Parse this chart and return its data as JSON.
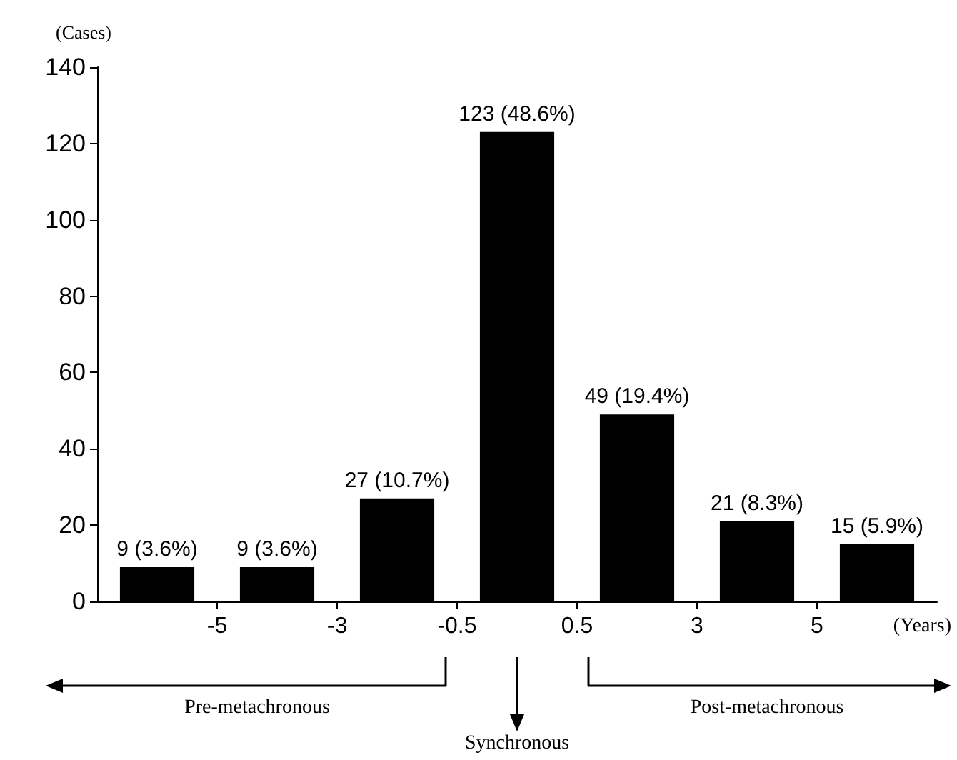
{
  "chart_data": {
    "type": "bar",
    "ylabel": "(Cases)",
    "categories": [
      null,
      null,
      null,
      null,
      null,
      null,
      null
    ],
    "values": [
      9,
      9,
      27,
      123,
      49,
      21,
      15
    ],
    "color": "#000000",
    "value_labels": [
      "9 (3.6%)",
      "9 (3.6%)",
      "27 (10.7%)",
      "123 (48.6%)",
      "49 (19.4%)",
      "21 (8.3%)",
      "15 (5.9%)"
    ],
    "ylim": [
      0,
      140
    ],
    "yticks": [
      0,
      20,
      40,
      60,
      80,
      100,
      120,
      140
    ],
    "grid": false,
    "annotations": [
      "-5",
      "-3",
      "-0.5",
      "0.5",
      "3",
      "5",
      "(Years)",
      "Pre-metachronous",
      "Synchronous",
      "Post-metachronous"
    ]
  }
}
